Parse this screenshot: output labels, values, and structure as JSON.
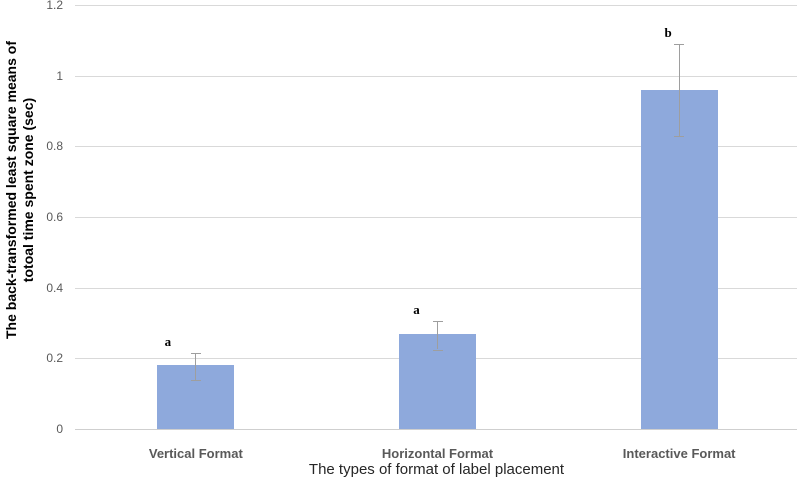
{
  "chart_data": {
    "type": "bar",
    "xlabel": "The types of format of label placement",
    "ylabel_lines": [
      "The back-transformed least square means of",
      "totoal time spent zone (sec)"
    ],
    "categories": [
      "Vertical Format",
      "Horizontal Format",
      "Interactive Format"
    ],
    "series": [
      {
        "name": "Back-transformed least square means of total time spent in zone (sec)",
        "values": [
          0.18,
          0.27,
          0.96
        ],
        "error_low": [
          0.14,
          0.225,
          0.83
        ],
        "error_high": [
          0.215,
          0.305,
          1.09
        ]
      }
    ],
    "sig_letters": [
      "a",
      "a",
      "b"
    ],
    "ylim": [
      0,
      1.2
    ],
    "ytick_step": 0.2,
    "ytick_labels": [
      "0",
      "0.2",
      "0.4",
      "0.6",
      "0.8",
      "1",
      "1.2"
    ],
    "grid": true,
    "legend": "none",
    "colors": {
      "bar_fill": "#8EA9DC",
      "error_bar": "#9e9e9e",
      "gridline": "#d9d9d9",
      "axis_line": "#cfcfcf",
      "tick_label": "#595959",
      "category_label": "#595959",
      "axis_title": "#262626",
      "sig_letter": "#000000"
    }
  }
}
